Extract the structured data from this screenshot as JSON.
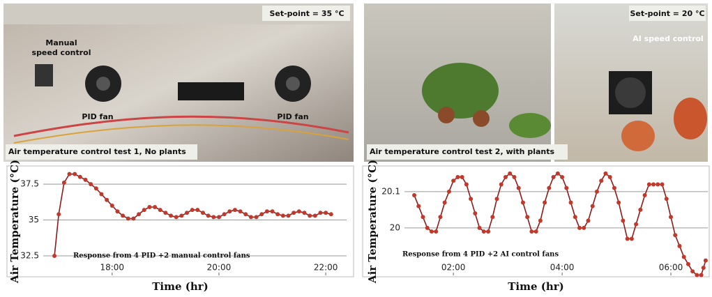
{
  "chart_data": [
    {
      "type": "line",
      "photo": {
        "setpoint": "Set-point = 35 °C",
        "labels": [
          "Manual",
          "speed control",
          "PID fan",
          "PID fan"
        ],
        "caption": "Air temperature control test 1, No plants"
      },
      "ylabel": "Air Temperature (°C)",
      "xlabel": "Time (hr)",
      "annotation": "Response from 4 PID +2 manual control fans",
      "color": "#8b1a1a",
      "marker_color": "#c0392b",
      "grid": true,
      "xlim": [
        16.71,
        22.39
      ],
      "ylim": [
        31.14,
        38.67
      ],
      "xticks": [
        {
          "value": 18,
          "label": "18:00"
        },
        {
          "value": 20,
          "label": "20:00"
        },
        {
          "value": 22,
          "label": "22:00"
        }
      ],
      "yticks": [
        32.5,
        35,
        37.5
      ],
      "x": [
        16.92,
        17.0,
        17.1,
        17.2,
        17.3,
        17.4,
        17.5,
        17.6,
        17.7,
        17.8,
        17.9,
        18.0,
        18.1,
        18.2,
        18.3,
        18.4,
        18.5,
        18.6,
        18.7,
        18.8,
        18.9,
        19.0,
        19.1,
        19.2,
        19.3,
        19.4,
        19.5,
        19.6,
        19.7,
        19.8,
        19.9,
        20.0,
        20.1,
        20.2,
        20.3,
        20.4,
        20.5,
        20.6,
        20.7,
        20.8,
        20.9,
        21.0,
        21.1,
        21.2,
        21.3,
        21.4,
        21.5,
        21.6,
        21.7,
        21.8,
        21.9,
        22.0,
        22.1
      ],
      "values": [
        32.5,
        35.4,
        37.6,
        38.2,
        38.2,
        38.0,
        37.8,
        37.5,
        37.2,
        36.8,
        36.4,
        36.0,
        35.6,
        35.3,
        35.1,
        35.1,
        35.4,
        35.7,
        35.9,
        35.9,
        35.7,
        35.5,
        35.3,
        35.2,
        35.3,
        35.5,
        35.7,
        35.7,
        35.5,
        35.3,
        35.2,
        35.2,
        35.4,
        35.6,
        35.7,
        35.6,
        35.4,
        35.2,
        35.2,
        35.4,
        35.6,
        35.6,
        35.4,
        35.3,
        35.3,
        35.5,
        35.6,
        35.5,
        35.3,
        35.3,
        35.5,
        35.5,
        35.4
      ]
    },
    {
      "type": "line",
      "photo": {
        "setpoint": "Set-point = 20 °C",
        "labels": [
          "AI speed control"
        ],
        "caption": "Air temperature control test 2, with plants"
      },
      "ylabel": "Air Temperature (°C)",
      "xlabel": "Time (hr)",
      "annotation": "Response from 4 PID +2 AI control fans",
      "color": "#8b1a1a",
      "marker_color": "#c0392b",
      "grid": true,
      "xlim": [
        1.1,
        6.68
      ],
      "ylim": [
        19.869,
        20.167
      ],
      "xticks": [
        {
          "value": 2,
          "label": "02:00"
        },
        {
          "value": 4,
          "label": "04:00"
        },
        {
          "value": 6,
          "label": "06:00"
        }
      ],
      "yticks": [
        20,
        20.1
      ],
      "x": [
        1.28,
        1.36,
        1.44,
        1.52,
        1.6,
        1.68,
        1.76,
        1.84,
        1.92,
        2.0,
        2.08,
        2.16,
        2.24,
        2.32,
        2.4,
        2.48,
        2.56,
        2.64,
        2.72,
        2.8,
        2.88,
        2.96,
        3.04,
        3.12,
        3.2,
        3.28,
        3.36,
        3.44,
        3.52,
        3.6,
        3.68,
        3.76,
        3.84,
        3.92,
        4.0,
        4.08,
        4.16,
        4.24,
        4.32,
        4.4,
        4.48,
        4.56,
        4.64,
        4.72,
        4.8,
        4.88,
        4.96,
        5.04,
        5.12,
        5.2,
        5.28,
        5.36,
        5.44,
        5.52,
        5.6,
        5.68,
        5.76,
        5.84,
        5.92,
        6.0,
        6.08,
        6.16,
        6.24,
        6.32,
        6.4,
        6.48,
        6.56,
        6.6,
        6.64
      ],
      "values": [
        20.09,
        20.06,
        20.03,
        20.0,
        19.99,
        19.99,
        20.03,
        20.07,
        20.1,
        20.13,
        20.14,
        20.14,
        20.12,
        20.08,
        20.04,
        20.0,
        19.99,
        19.99,
        20.03,
        20.08,
        20.12,
        20.14,
        20.15,
        20.14,
        20.11,
        20.07,
        20.03,
        19.99,
        19.99,
        20.02,
        20.07,
        20.11,
        20.14,
        20.15,
        20.14,
        20.11,
        20.07,
        20.03,
        20.0,
        20.0,
        20.02,
        20.06,
        20.1,
        20.13,
        20.15,
        20.14,
        20.11,
        20.07,
        20.02,
        19.97,
        19.97,
        20.01,
        20.05,
        20.09,
        20.12,
        20.12,
        20.12,
        20.12,
        20.08,
        20.03,
        19.98,
        19.95,
        19.92,
        19.9,
        19.88,
        19.87,
        19.87,
        19.89,
        19.91
      ]
    }
  ]
}
